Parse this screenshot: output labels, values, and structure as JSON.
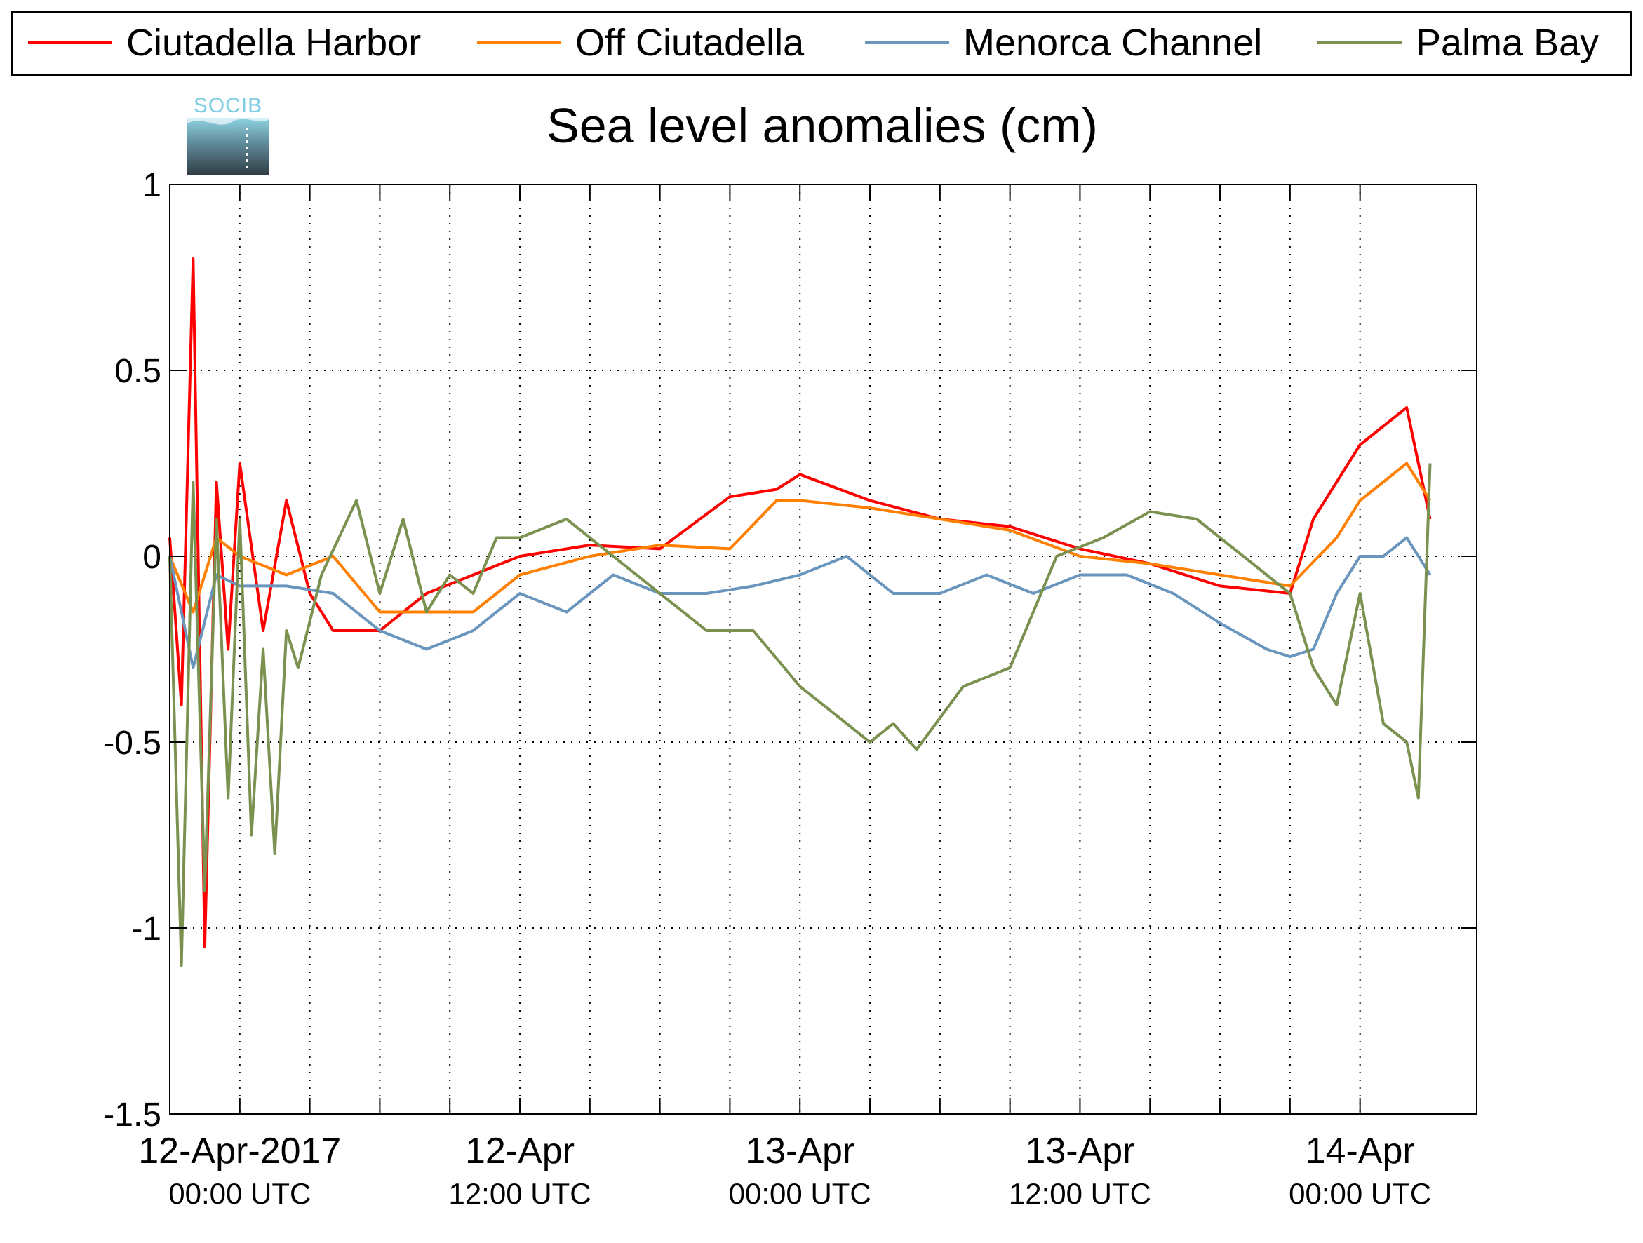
{
  "logo": {
    "text": "SOCIB"
  },
  "chart_data": {
    "type": "line",
    "title": "Sea level anomalies (cm)",
    "xlabel": "",
    "ylabel": "",
    "x_range": [
      "2017-04-11T21:00Z",
      "2017-04-14T05:00Z"
    ],
    "ylim": [
      -1.5,
      1
    ],
    "yticks": [
      -1.5,
      -1,
      -0.5,
      0,
      0.5,
      1
    ],
    "ytick_labels": [
      "-1.5",
      "-1",
      "-0.5",
      "0",
      "0.5",
      "1"
    ],
    "xticks_labeled": [
      {
        "x": "2017-04-12T00:00Z",
        "line1": "12-Apr-2017",
        "line2": "00:00 UTC"
      },
      {
        "x": "2017-04-12T12:00Z",
        "line1": "12-Apr",
        "line2": "12:00 UTC"
      },
      {
        "x": "2017-04-13T00:00Z",
        "line1": "13-Apr",
        "line2": "00:00 UTC"
      },
      {
        "x": "2017-04-13T12:00Z",
        "line1": "13-Apr",
        "line2": "12:00 UTC"
      },
      {
        "x": "2017-04-14T00:00Z",
        "line1": "14-Apr",
        "line2": "00:00 UTC"
      }
    ],
    "xticks_minor": [
      "2017-04-12T03:00Z",
      "2017-04-12T06:00Z",
      "2017-04-12T09:00Z",
      "2017-04-12T15:00Z",
      "2017-04-12T18:00Z",
      "2017-04-12T21:00Z",
      "2017-04-13T03:00Z",
      "2017-04-13T06:00Z",
      "2017-04-13T09:00Z",
      "2017-04-13T15:00Z",
      "2017-04-13T18:00Z",
      "2017-04-13T21:00Z"
    ],
    "grid": true,
    "legend_position": "top",
    "series": [
      {
        "name": "Ciutadella Harbor",
        "color": "#ff0000",
        "x": [
          "2017-04-11T21:00Z",
          "2017-04-11T21:30Z",
          "2017-04-11T22:00Z",
          "2017-04-11T22:30Z",
          "2017-04-11T23:00Z",
          "2017-04-11T23:30Z",
          "2017-04-12T00:00Z",
          "2017-04-12T01:00Z",
          "2017-04-12T02:00Z",
          "2017-04-12T03:00Z",
          "2017-04-12T04:00Z",
          "2017-04-12T06:00Z",
          "2017-04-12T08:00Z",
          "2017-04-12T10:00Z",
          "2017-04-12T12:00Z",
          "2017-04-12T15:00Z",
          "2017-04-12T18:00Z",
          "2017-04-12T21:00Z",
          "2017-04-12T23:00Z",
          "2017-04-13T00:00Z",
          "2017-04-13T03:00Z",
          "2017-04-13T06:00Z",
          "2017-04-13T09:00Z",
          "2017-04-13T12:00Z",
          "2017-04-13T15:00Z",
          "2017-04-13T18:00Z",
          "2017-04-13T21:00Z",
          "2017-04-13T22:00Z",
          "2017-04-13T23:00Z",
          "2017-04-14T00:00Z",
          "2017-04-14T01:00Z",
          "2017-04-14T02:00Z",
          "2017-04-14T03:00Z"
        ],
        "y": [
          0.05,
          -0.4,
          0.8,
          -1.05,
          0.2,
          -0.25,
          0.25,
          -0.2,
          0.15,
          -0.1,
          -0.2,
          -0.2,
          -0.1,
          -0.05,
          0.0,
          0.03,
          0.02,
          0.16,
          0.18,
          0.22,
          0.15,
          0.1,
          0.08,
          0.02,
          -0.02,
          -0.08,
          -0.1,
          0.1,
          0.2,
          0.3,
          0.35,
          0.4,
          0.1
        ]
      },
      {
        "name": "Off Ciutadella",
        "color": "#ff8000",
        "x": [
          "2017-04-11T21:00Z",
          "2017-04-11T22:00Z",
          "2017-04-11T23:00Z",
          "2017-04-12T00:00Z",
          "2017-04-12T02:00Z",
          "2017-04-12T04:00Z",
          "2017-04-12T06:00Z",
          "2017-04-12T08:00Z",
          "2017-04-12T10:00Z",
          "2017-04-12T12:00Z",
          "2017-04-12T15:00Z",
          "2017-04-12T18:00Z",
          "2017-04-12T21:00Z",
          "2017-04-12T23:00Z",
          "2017-04-13T00:00Z",
          "2017-04-13T03:00Z",
          "2017-04-13T06:00Z",
          "2017-04-13T09:00Z",
          "2017-04-13T12:00Z",
          "2017-04-13T15:00Z",
          "2017-04-13T18:00Z",
          "2017-04-13T21:00Z",
          "2017-04-13T23:00Z",
          "2017-04-14T00:00Z",
          "2017-04-14T01:00Z",
          "2017-04-14T02:00Z",
          "2017-04-14T03:00Z"
        ],
        "y": [
          0.0,
          -0.15,
          0.05,
          0.0,
          -0.05,
          0.0,
          -0.15,
          -0.15,
          -0.15,
          -0.05,
          0.0,
          0.03,
          0.02,
          0.15,
          0.15,
          0.13,
          0.1,
          0.07,
          0.0,
          -0.02,
          -0.05,
          -0.08,
          0.05,
          0.15,
          0.2,
          0.25,
          0.15
        ]
      },
      {
        "name": "Menorca Channel",
        "color": "#6a96be",
        "x": [
          "2017-04-11T21:00Z",
          "2017-04-11T22:00Z",
          "2017-04-11T23:00Z",
          "2017-04-12T00:00Z",
          "2017-04-12T02:00Z",
          "2017-04-12T04:00Z",
          "2017-04-12T06:00Z",
          "2017-04-12T08:00Z",
          "2017-04-12T10:00Z",
          "2017-04-12T12:00Z",
          "2017-04-12T14:00Z",
          "2017-04-12T16:00Z",
          "2017-04-12T18:00Z",
          "2017-04-12T20:00Z",
          "2017-04-12T22:00Z",
          "2017-04-13T00:00Z",
          "2017-04-13T02:00Z",
          "2017-04-13T04:00Z",
          "2017-04-13T06:00Z",
          "2017-04-13T08:00Z",
          "2017-04-13T10:00Z",
          "2017-04-13T12:00Z",
          "2017-04-13T14:00Z",
          "2017-04-13T16:00Z",
          "2017-04-13T18:00Z",
          "2017-04-13T20:00Z",
          "2017-04-13T21:00Z",
          "2017-04-13T22:00Z",
          "2017-04-13T23:00Z",
          "2017-04-14T00:00Z",
          "2017-04-14T01:00Z",
          "2017-04-14T02:00Z",
          "2017-04-14T03:00Z"
        ],
        "y": [
          0.0,
          -0.3,
          -0.05,
          -0.08,
          -0.08,
          -0.1,
          -0.2,
          -0.25,
          -0.2,
          -0.1,
          -0.15,
          -0.05,
          -0.1,
          -0.1,
          -0.08,
          -0.05,
          0.0,
          -0.1,
          -0.1,
          -0.05,
          -0.1,
          -0.05,
          -0.05,
          -0.1,
          -0.18,
          -0.25,
          -0.27,
          -0.25,
          -0.1,
          0.0,
          0.0,
          0.05,
          -0.05
        ]
      },
      {
        "name": "Palma Bay",
        "color": "#7a9150",
        "x": [
          "2017-04-11T21:00Z",
          "2017-04-11T21:30Z",
          "2017-04-11T22:00Z",
          "2017-04-11T22:30Z",
          "2017-04-11T23:00Z",
          "2017-04-11T23:30Z",
          "2017-04-12T00:00Z",
          "2017-04-12T00:30Z",
          "2017-04-12T01:00Z",
          "2017-04-12T01:30Z",
          "2017-04-12T02:00Z",
          "2017-04-12T02:30Z",
          "2017-04-12T03:30Z",
          "2017-04-12T05:00Z",
          "2017-04-12T06:00Z",
          "2017-04-12T07:00Z",
          "2017-04-12T08:00Z",
          "2017-04-12T09:00Z",
          "2017-04-12T10:00Z",
          "2017-04-12T11:00Z",
          "2017-04-12T12:00Z",
          "2017-04-12T14:00Z",
          "2017-04-12T16:00Z",
          "2017-04-12T18:00Z",
          "2017-04-12T20:00Z",
          "2017-04-12T22:00Z",
          "2017-04-13T00:00Z",
          "2017-04-13T02:00Z",
          "2017-04-13T03:00Z",
          "2017-04-13T04:00Z",
          "2017-04-13T05:00Z",
          "2017-04-13T07:00Z",
          "2017-04-13T09:00Z",
          "2017-04-13T11:00Z",
          "2017-04-13T13:00Z",
          "2017-04-13T15:00Z",
          "2017-04-13T17:00Z",
          "2017-04-13T19:00Z",
          "2017-04-13T21:00Z",
          "2017-04-13T22:00Z",
          "2017-04-13T23:00Z",
          "2017-04-14T00:00Z",
          "2017-04-14T01:00Z",
          "2017-04-14T02:00Z",
          "2017-04-14T02:30Z",
          "2017-04-14T03:00Z"
        ],
        "y": [
          0.0,
          -1.1,
          0.2,
          -0.9,
          0.1,
          -0.65,
          0.1,
          -0.75,
          -0.25,
          -0.8,
          -0.2,
          -0.3,
          -0.05,
          0.15,
          -0.1,
          0.1,
          -0.15,
          -0.05,
          -0.1,
          0.05,
          0.05,
          0.1,
          0.0,
          -0.1,
          -0.2,
          -0.2,
          -0.35,
          -0.45,
          -0.5,
          -0.45,
          -0.52,
          -0.35,
          -0.3,
          0.0,
          0.05,
          0.12,
          0.1,
          0.0,
          -0.1,
          -0.3,
          -0.4,
          -0.1,
          -0.45,
          -0.5,
          -0.65,
          0.25
        ]
      }
    ]
  }
}
